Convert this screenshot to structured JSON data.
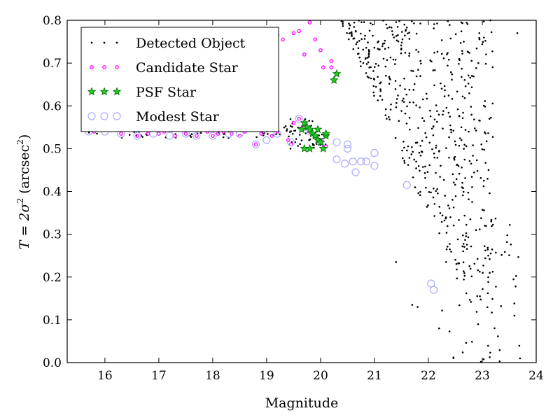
{
  "chart_data": {
    "type": "scatter",
    "xlabel": "Magnitude",
    "ylabel": {
      "prefix": "T = 2σ",
      "sup_1": "2",
      "paren_open": " (arcsec",
      "sup_2": "2",
      "paren_close": ")"
    },
    "xlim": [
      15.3,
      24.0
    ],
    "ylim": [
      0.0,
      0.8
    ],
    "xticks": [
      16,
      17,
      18,
      19,
      20,
      21,
      22,
      23,
      24
    ],
    "yticks": [
      0.0,
      0.1,
      0.2,
      0.3,
      0.4,
      0.5,
      0.6,
      0.7,
      0.8
    ],
    "grid": false,
    "legend_position": "top-left",
    "legend": [
      {
        "key": "detected",
        "label": "Detected Object",
        "color": "#000000",
        "marker": "dot"
      },
      {
        "key": "candidate",
        "label": "Candidate Star",
        "color": "#ff00ff",
        "marker": "circle-small"
      },
      {
        "key": "psf",
        "label": "PSF Star",
        "color": "#00aa00",
        "marker": "star"
      },
      {
        "key": "modest",
        "label": "Modest Star",
        "color": "#aaaaff",
        "marker": "circle-open"
      }
    ],
    "series": [
      {
        "key": "candidate",
        "label": "Candidate Star",
        "color": "#ff00ff",
        "points": [
          [
            15.8,
            0.54
          ],
          [
            16.3,
            0.535
          ],
          [
            16.6,
            0.53
          ],
          [
            16.8,
            0.535
          ],
          [
            17.0,
            0.535
          ],
          [
            17.1,
            0.54
          ],
          [
            17.3,
            0.53
          ],
          [
            17.5,
            0.535
          ],
          [
            17.7,
            0.53
          ],
          [
            17.9,
            0.54
          ],
          [
            18.0,
            0.53
          ],
          [
            18.1,
            0.535
          ],
          [
            18.2,
            0.54
          ],
          [
            18.35,
            0.535
          ],
          [
            18.5,
            0.53
          ],
          [
            18.6,
            0.54
          ],
          [
            18.8,
            0.51
          ],
          [
            18.9,
            0.535
          ],
          [
            19.1,
            0.53
          ],
          [
            19.2,
            0.54
          ],
          [
            19.4,
            0.52
          ],
          [
            19.45,
            0.51
          ],
          [
            19.5,
            0.56
          ],
          [
            19.6,
            0.57
          ],
          [
            19.7,
            0.55
          ],
          [
            19.8,
            0.54
          ],
          [
            20.0,
            0.52
          ],
          [
            20.1,
            0.505
          ],
          [
            19.2,
            0.765
          ],
          [
            19.3,
            0.755
          ],
          [
            19.5,
            0.77
          ],
          [
            19.6,
            0.775
          ],
          [
            19.8,
            0.795
          ],
          [
            19.9,
            0.755
          ],
          [
            19.7,
            0.72
          ],
          [
            20.0,
            0.73
          ],
          [
            20.05,
            0.69
          ],
          [
            20.2,
            0.705
          ],
          [
            20.2,
            0.69
          ]
        ]
      },
      {
        "key": "psf",
        "label": "PSF Star",
        "color": "#00aa00",
        "points": [
          [
            19.7,
            0.56
          ],
          [
            19.75,
            0.55
          ],
          [
            19.8,
            0.545
          ],
          [
            19.85,
            0.535
          ],
          [
            19.9,
            0.53
          ],
          [
            19.95,
            0.52
          ],
          [
            20.0,
            0.515
          ],
          [
            20.1,
            0.53
          ],
          [
            20.1,
            0.535
          ],
          [
            19.7,
            0.5
          ],
          [
            19.8,
            0.5
          ],
          [
            20.05,
            0.5
          ],
          [
            19.95,
            0.545
          ],
          [
            20.3,
            0.675
          ],
          [
            20.25,
            0.66
          ],
          [
            19.65,
            0.545
          ]
        ]
      },
      {
        "key": "modest",
        "label": "Modest Star",
        "color": "#aaaaff",
        "points": [
          [
            15.7,
            0.54
          ],
          [
            16.0,
            0.54
          ],
          [
            16.3,
            0.535
          ],
          [
            16.6,
            0.53
          ],
          [
            16.9,
            0.535
          ],
          [
            17.2,
            0.53
          ],
          [
            17.5,
            0.535
          ],
          [
            17.7,
            0.53
          ],
          [
            18.0,
            0.53
          ],
          [
            18.3,
            0.535
          ],
          [
            18.5,
            0.535
          ],
          [
            18.8,
            0.51
          ],
          [
            19.0,
            0.52
          ],
          [
            19.2,
            0.535
          ],
          [
            19.45,
            0.515
          ],
          [
            19.6,
            0.57
          ],
          [
            19.8,
            0.54
          ],
          [
            20.0,
            0.515
          ],
          [
            20.3,
            0.475
          ],
          [
            20.45,
            0.465
          ],
          [
            20.5,
            0.51
          ],
          [
            20.6,
            0.47
          ],
          [
            20.65,
            0.445
          ],
          [
            20.75,
            0.47
          ],
          [
            20.85,
            0.47
          ],
          [
            21.0,
            0.46
          ],
          [
            21.0,
            0.49
          ],
          [
            21.6,
            0.415
          ],
          [
            22.05,
            0.185
          ],
          [
            22.1,
            0.17
          ],
          [
            20.3,
            0.515
          ],
          [
            20.5,
            0.5
          ]
        ]
      }
    ]
  }
}
